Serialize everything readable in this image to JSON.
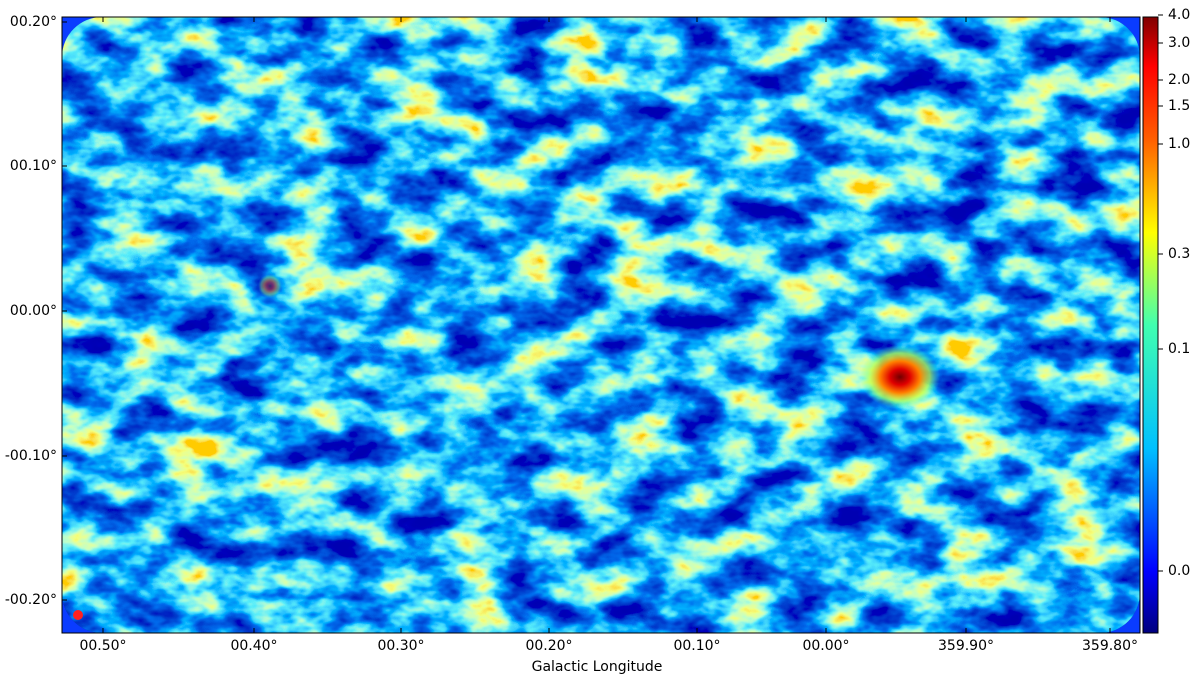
{
  "x_axis": {
    "label": "Galactic Longitude",
    "ticks": [
      "00.50°",
      "00.40°",
      "00.30°",
      "00.20°",
      "00.10°",
      "00.00°",
      "359.90°",
      "359.80°"
    ]
  },
  "y_axis": {
    "ticks": [
      "00.20°",
      "00.10°",
      "00.00°",
      "-00.10°",
      "-00.20°"
    ]
  },
  "colorbar": {
    "ticks": [
      "4.0",
      "3.0",
      "2.0",
      "1.5",
      "1.0",
      "0.3",
      "0.1",
      "0.0"
    ]
  }
}
